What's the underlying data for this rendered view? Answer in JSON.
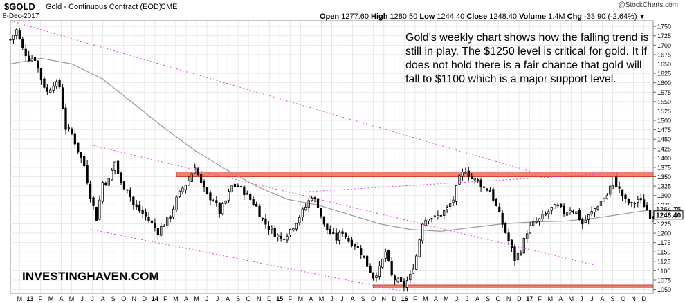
{
  "header": {
    "symbol": "$GOLD",
    "description": "Gold - Continuous Contract (EOD)",
    "exchange": "CME",
    "date": "8-Dec-2017",
    "open_label": "Open",
    "open": "1277.60",
    "high_label": "High",
    "high": "1280.50",
    "low_label": "Low",
    "low": "1244.40",
    "close_label": "Close",
    "close": "1248.40",
    "volume_label": "Volume",
    "volume": "1.4M",
    "change_label": "Chg",
    "change": "-33.90 (-2.64%)",
    "change_icon": "down-triangle-icon",
    "source": "@StockCharts.com"
  },
  "annotation": "Gold's weekly chart shows how the falling trend is still in play. The $1250 level is critical for gold. It if does not hold there is a fair chance that gold will fall to $1100 which is a major support level.",
  "brand": "INVESTINGHAVEN.COM",
  "colors": {
    "candles": "#000000",
    "moving_average": "#9a9a9a",
    "trendlines": "#e040e0",
    "zones": "#f08070",
    "zone_border": "#d04030",
    "grid": "#e8e8e8",
    "last_price_box": "#ffffff"
  },
  "chart_data": {
    "type": "candlestick",
    "interval": "weekly",
    "x_tick_labels": [
      "M",
      "13",
      "F",
      "M",
      "A",
      "M",
      "J",
      "J",
      "A",
      "S",
      "O",
      "N",
      "D",
      "14",
      "F",
      "M",
      "A",
      "M",
      "J",
      "J",
      "A",
      "S",
      "O",
      "N",
      "D",
      "15",
      "F",
      "M",
      "A",
      "M",
      "J",
      "J",
      "A",
      "S",
      "O",
      "N",
      "D",
      "16",
      "F",
      "M",
      "A",
      "M",
      "J",
      "J",
      "A",
      "S",
      "O",
      "N",
      "D",
      "17",
      "F",
      "M",
      "A",
      "M",
      "J",
      "J",
      "A",
      "S",
      "O",
      "N",
      "D"
    ],
    "y_tick_labels": [
      "1750",
      "1725",
      "1700",
      "1675",
      "1650",
      "1625",
      "1600",
      "1575",
      "1550",
      "1525",
      "1500",
      "1475",
      "1450",
      "1425",
      "1400",
      "1375",
      "1350",
      "1325",
      "1300",
      "1275",
      "1250",
      "1225",
      "1200",
      "1175",
      "1150",
      "1125",
      "1100",
      "1075",
      "1050"
    ],
    "ylim": [
      1040,
      1765
    ],
    "grid": true,
    "last_price_labels": [
      "1264.75",
      "1248.40"
    ],
    "close_path": [
      [
        0,
        1715
      ],
      [
        2,
        1740
      ],
      [
        4,
        1690
      ],
      [
        6,
        1665
      ],
      [
        8,
        1665
      ],
      [
        10,
        1610
      ],
      [
        12,
        1575
      ],
      [
        14,
        1600
      ],
      [
        16,
        1590
      ],
      [
        18,
        1480
      ],
      [
        20,
        1465
      ],
      [
        22,
        1420
      ],
      [
        24,
        1380
      ],
      [
        26,
        1300
      ],
      [
        28,
        1240
      ],
      [
        30,
        1335
      ],
      [
        32,
        1340
      ],
      [
        34,
        1390
      ],
      [
        36,
        1330
      ],
      [
        38,
        1320
      ],
      [
        40,
        1275
      ],
      [
        42,
        1260
      ],
      [
        44,
        1245
      ],
      [
        46,
        1225
      ],
      [
        48,
        1205
      ],
      [
        50,
        1225
      ],
      [
        52,
        1245
      ],
      [
        54,
        1290
      ],
      [
        56,
        1320
      ],
      [
        58,
        1340
      ],
      [
        60,
        1380
      ],
      [
        62,
        1330
      ],
      [
        64,
        1300
      ],
      [
        66,
        1290
      ],
      [
        68,
        1255
      ],
      [
        70,
        1285
      ],
      [
        72,
        1325
      ],
      [
        74,
        1325
      ],
      [
        76,
        1310
      ],
      [
        78,
        1290
      ],
      [
        80,
        1270
      ],
      [
        82,
        1235
      ],
      [
        84,
        1215
      ],
      [
        86,
        1200
      ],
      [
        88,
        1185
      ],
      [
        90,
        1200
      ],
      [
        92,
        1220
      ],
      [
        94,
        1245
      ],
      [
        96,
        1270
      ],
      [
        98,
        1300
      ],
      [
        100,
        1275
      ],
      [
        102,
        1220
      ],
      [
        104,
        1200
      ],
      [
        106,
        1185
      ],
      [
        108,
        1205
      ],
      [
        110,
        1180
      ],
      [
        112,
        1170
      ],
      [
        114,
        1150
      ],
      [
        116,
        1115
      ],
      [
        118,
        1085
      ],
      [
        120,
        1105
      ],
      [
        122,
        1150
      ],
      [
        124,
        1085
      ],
      [
        126,
        1070
      ],
      [
        128,
        1060
      ],
      [
        130,
        1085
      ],
      [
        132,
        1140
      ],
      [
        134,
        1230
      ],
      [
        136,
        1245
      ],
      [
        138,
        1240
      ],
      [
        140,
        1250
      ],
      [
        142,
        1265
      ],
      [
        144,
        1290
      ],
      [
        146,
        1345
      ],
      [
        148,
        1370
      ],
      [
        150,
        1345
      ],
      [
        152,
        1340
      ],
      [
        154,
        1320
      ],
      [
        156,
        1315
      ],
      [
        158,
        1270
      ],
      [
        160,
        1225
      ],
      [
        162,
        1180
      ],
      [
        164,
        1130
      ],
      [
        166,
        1155
      ],
      [
        168,
        1205
      ],
      [
        170,
        1225
      ],
      [
        172,
        1235
      ],
      [
        174,
        1250
      ],
      [
        176,
        1265
      ],
      [
        178,
        1270
      ],
      [
        180,
        1255
      ],
      [
        182,
        1265
      ],
      [
        184,
        1255
      ],
      [
        186,
        1225
      ],
      [
        188,
        1245
      ],
      [
        190,
        1265
      ],
      [
        192,
        1285
      ],
      [
        194,
        1300
      ],
      [
        196,
        1345
      ],
      [
        198,
        1315
      ],
      [
        200,
        1285
      ],
      [
        202,
        1275
      ],
      [
        204,
        1290
      ],
      [
        206,
        1275
      ],
      [
        208,
        1248
      ]
    ],
    "moving_average": [
      [
        0,
        1650
      ],
      [
        10,
        1665
      ],
      [
        20,
        1650
      ],
      [
        30,
        1610
      ],
      [
        40,
        1545
      ],
      [
        50,
        1480
      ],
      [
        60,
        1420
      ],
      [
        70,
        1370
      ],
      [
        80,
        1325
      ],
      [
        90,
        1290
      ],
      [
        100,
        1275
      ],
      [
        110,
        1250
      ],
      [
        120,
        1225
      ],
      [
        130,
        1210
      ],
      [
        140,
        1205
      ],
      [
        150,
        1215
      ],
      [
        160,
        1225
      ],
      [
        170,
        1230
      ],
      [
        180,
        1232
      ],
      [
        190,
        1240
      ],
      [
        200,
        1252
      ],
      [
        208,
        1262
      ]
    ],
    "trendlines": [
      {
        "from": [
          0,
          1765
        ],
        "to": [
          173,
          1355
        ]
      },
      {
        "from": [
          26,
          1435
        ],
        "to": [
          190,
          1115
        ]
      },
      {
        "from": [
          26,
          1210
        ],
        "to": [
          128,
          1045
        ]
      },
      {
        "from": [
          96,
          1310
        ],
        "to": [
          198,
          1360
        ]
      }
    ],
    "resistance_zone": {
      "from_x": 54,
      "to_x": 209,
      "low": 1350,
      "high": 1363
    },
    "support_zone": {
      "from_x": 118,
      "to_x": 209,
      "low": 1054,
      "high": 1062
    }
  }
}
